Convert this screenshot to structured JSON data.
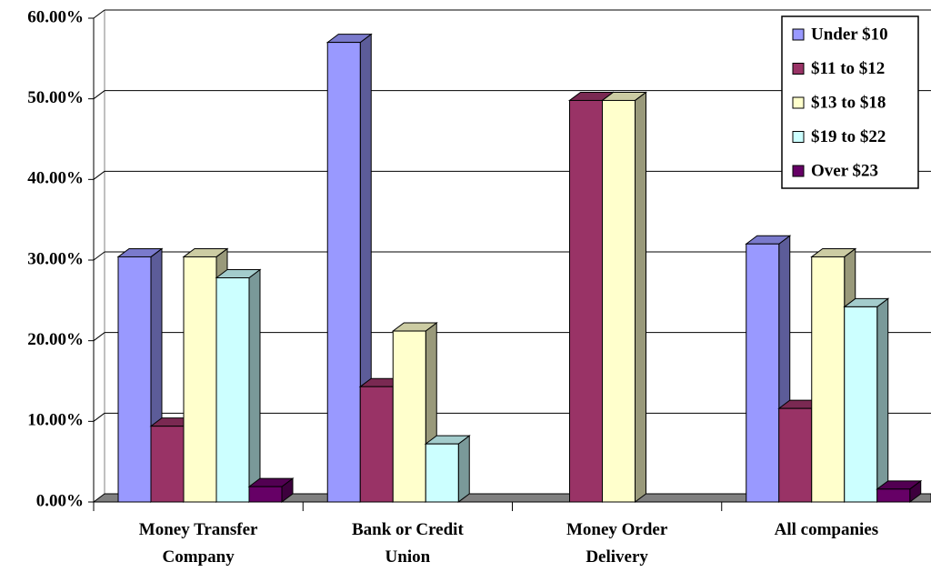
{
  "chart_data": {
    "type": "bar3d",
    "categories": [
      "Money Transfer Company",
      "Bank or Credit Union",
      "Money Order Delivery",
      "All companies"
    ],
    "series": [
      {
        "name": "Under $10",
        "color": "#9999ff",
        "values": [
          30.4,
          57.0,
          0,
          32.0
        ]
      },
      {
        "name": "$11 to $12",
        "color": "#993366",
        "values": [
          9.4,
          14.3,
          49.8,
          11.6
        ]
      },
      {
        "name": "$13 to $18",
        "color": "#ffffcc",
        "values": [
          30.4,
          21.2,
          49.8,
          30.4
        ]
      },
      {
        "name": "$19 to $22",
        "color": "#ccffff",
        "values": [
          27.8,
          7.2,
          0,
          24.2
        ]
      },
      {
        "name": "Over $23",
        "color": "#660066",
        "values": [
          1.9,
          0,
          0,
          1.6
        ]
      }
    ],
    "ylim": [
      0,
      60
    ],
    "yticks": [
      {
        "value": 0,
        "label": "0.00%"
      },
      {
        "value": 10,
        "label": "10.00%"
      },
      {
        "value": 20,
        "label": "20.00%"
      },
      {
        "value": 30,
        "label": "30.00%"
      },
      {
        "value": 40,
        "label": "40.00%"
      },
      {
        "value": 50,
        "label": "50.00%"
      },
      {
        "value": 60,
        "label": "60.00%"
      }
    ],
    "grid": true,
    "legend": "top-right"
  }
}
